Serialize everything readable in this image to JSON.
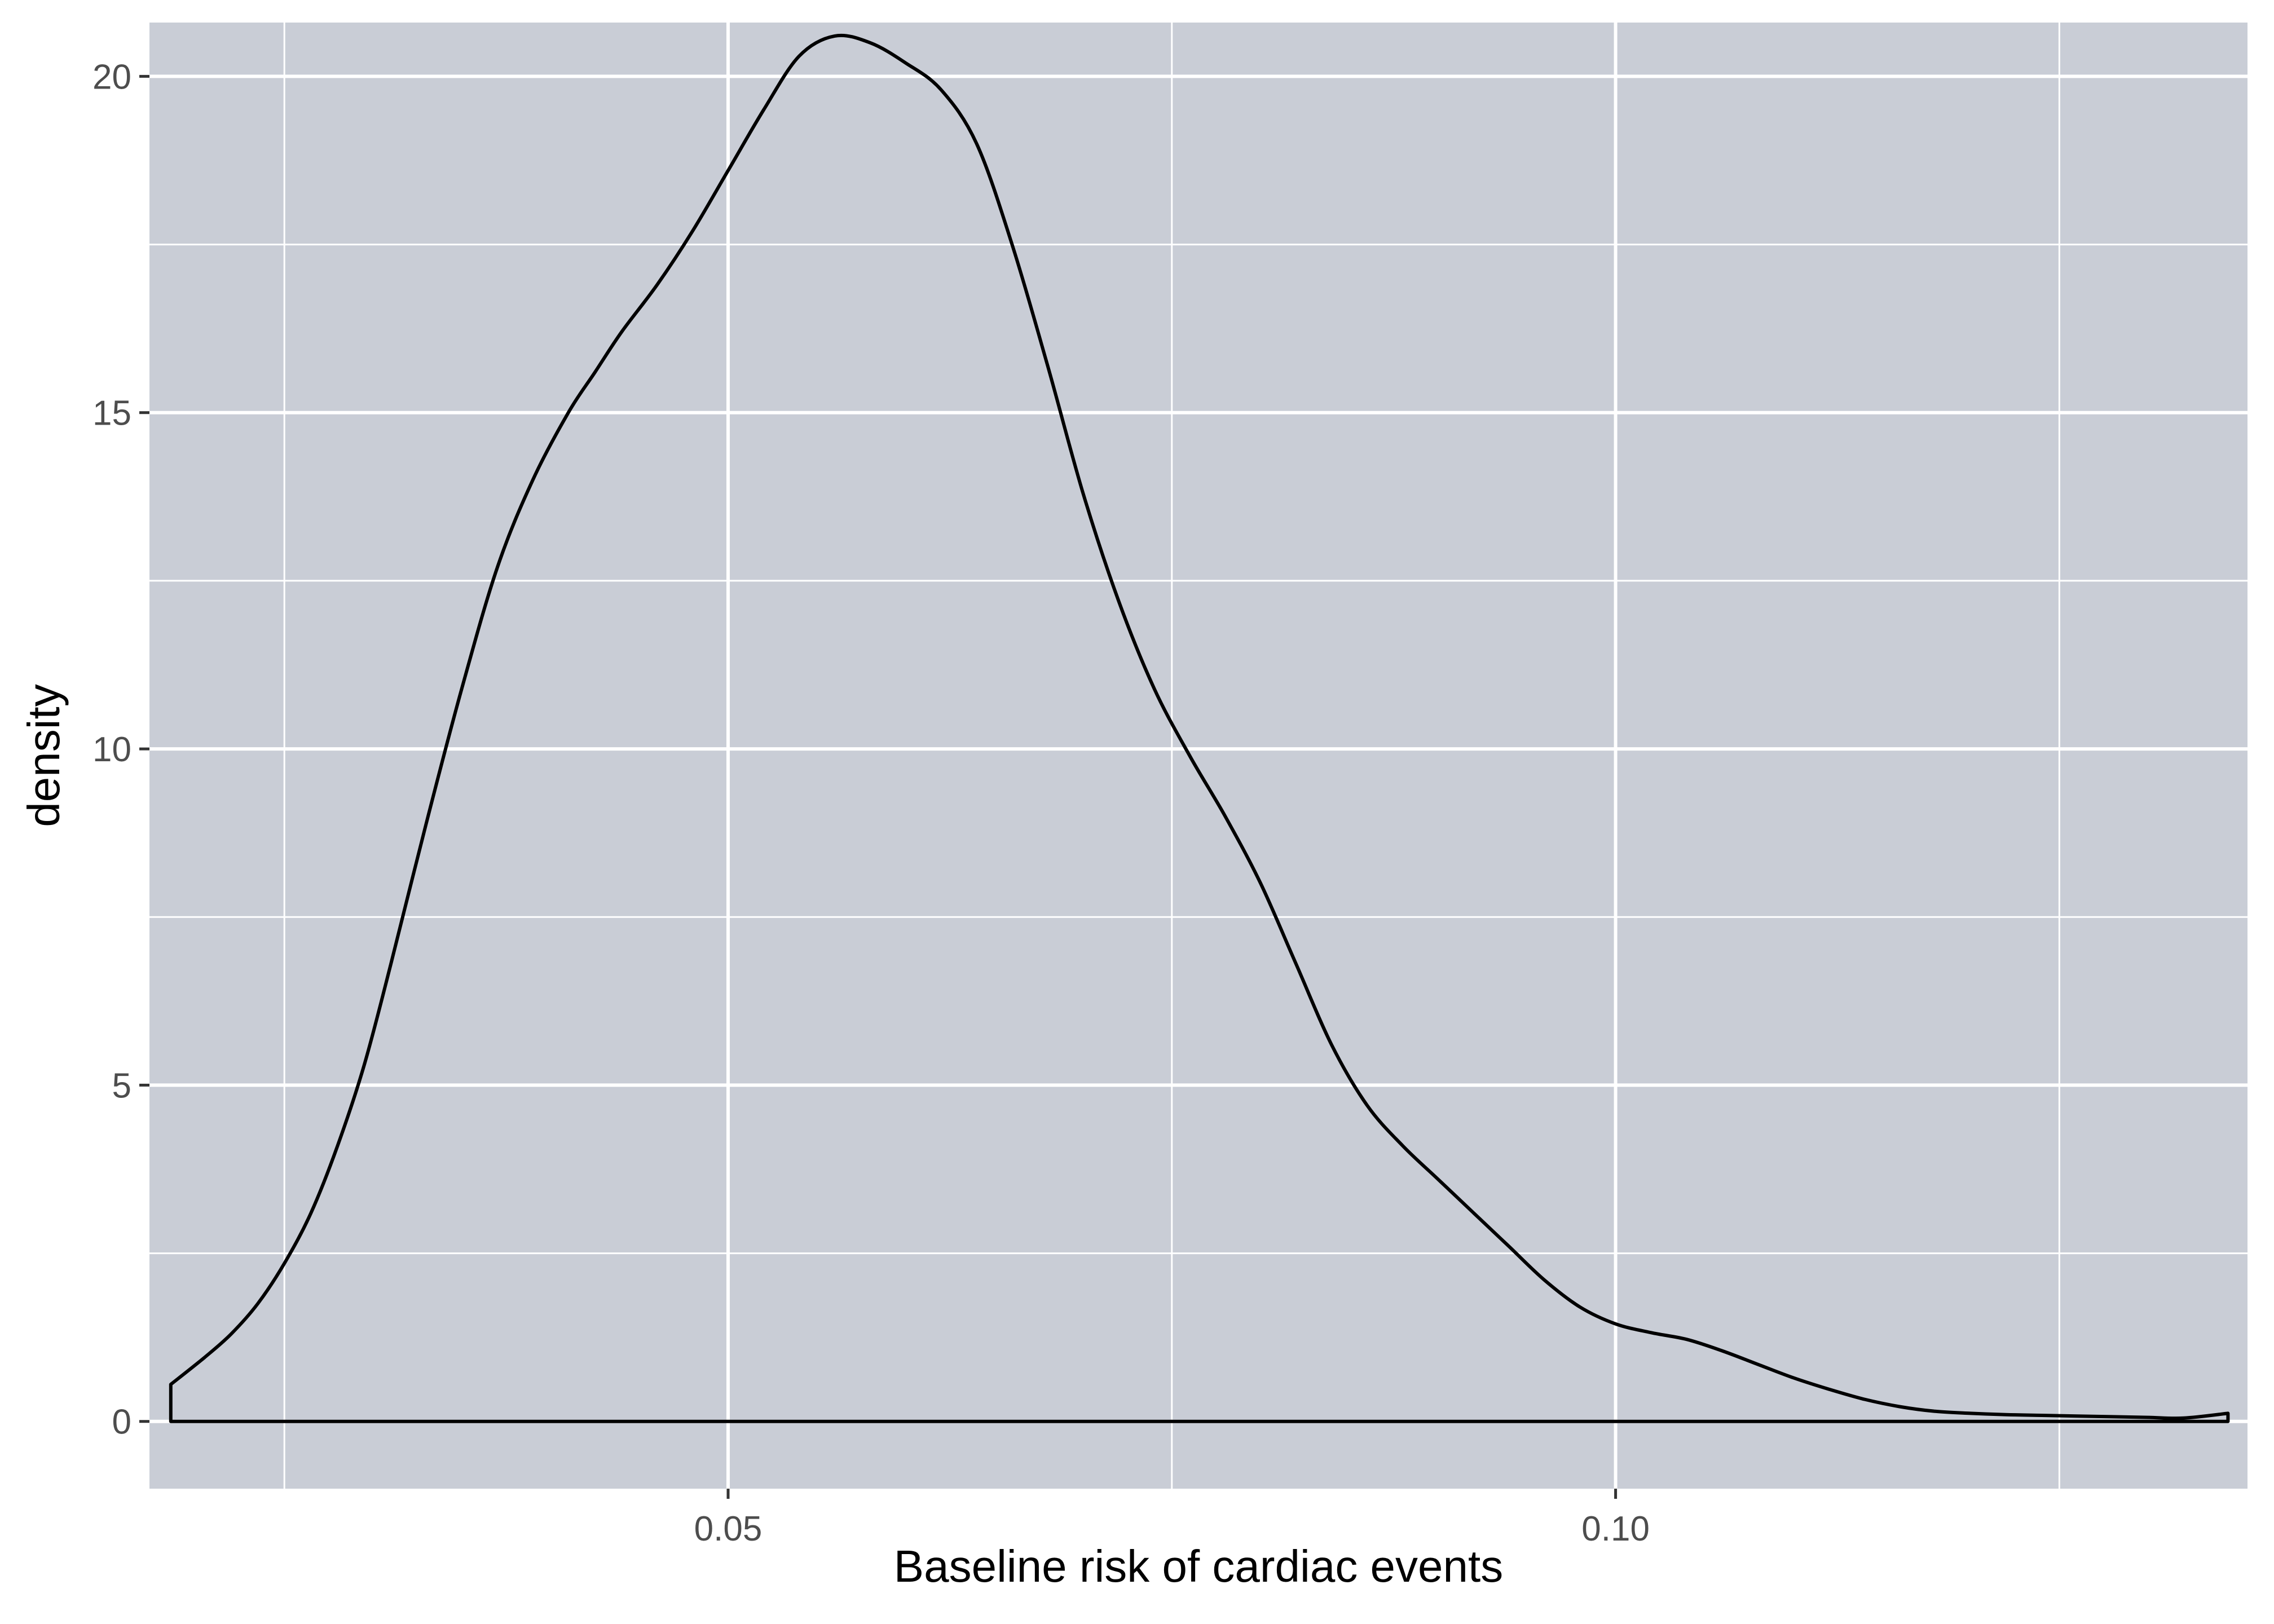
{
  "colors": {
    "panel_background": "#c9cdd6",
    "grid_major": "#ffffff",
    "grid_minor": "#ffffff",
    "curve": "#000000",
    "tick_text": "#4d4d4d",
    "title_text": "#000000"
  },
  "chart_data": {
    "type": "area",
    "geom": "density",
    "title": "",
    "xlabel": "Baseline risk of cardiac events",
    "ylabel": "density",
    "xlim": [
      0.0174,
      0.1356
    ],
    "ylim": [
      -1.0,
      20.8
    ],
    "x_ticks": [
      {
        "value": 0.05,
        "label": "0.05"
      },
      {
        "value": 0.1,
        "label": "0.10"
      }
    ],
    "x_minor_ticks": [
      0.025,
      0.075,
      0.125
    ],
    "y_ticks": [
      {
        "value": 0,
        "label": "0"
      },
      {
        "value": 5,
        "label": "5"
      },
      {
        "value": 10,
        "label": "10"
      },
      {
        "value": 15,
        "label": "15"
      },
      {
        "value": 20,
        "label": "20"
      }
    ],
    "y_minor_ticks": [
      2.5,
      7.5,
      12.5,
      17.5
    ],
    "grid": true,
    "legend": "none",
    "fill": "none",
    "series": [
      {
        "x": [
          0.0186,
          0.0205,
          0.022,
          0.0235,
          0.025,
          0.0265,
          0.028,
          0.0295,
          0.031,
          0.033,
          0.035,
          0.037,
          0.039,
          0.041,
          0.0425,
          0.044,
          0.046,
          0.048,
          0.05,
          0.052,
          0.054,
          0.056,
          0.058,
          0.06,
          0.062,
          0.064,
          0.066,
          0.068,
          0.07,
          0.072,
          0.074,
          0.076,
          0.078,
          0.08,
          0.082,
          0.084,
          0.086,
          0.088,
          0.09,
          0.092,
          0.094,
          0.096,
          0.098,
          0.1,
          0.102,
          0.104,
          0.106,
          0.108,
          0.11,
          0.112,
          0.114,
          0.116,
          0.118,
          0.12,
          0.122,
          0.124,
          0.126,
          0.128,
          0.13,
          0.132,
          0.1345
        ],
        "y": [
          0.55,
          0.95,
          1.3,
          1.75,
          2.35,
          3.1,
          4.1,
          5.3,
          6.8,
          8.9,
          10.9,
          12.7,
          14.0,
          15.0,
          15.6,
          16.2,
          16.9,
          17.7,
          18.6,
          19.5,
          20.3,
          20.6,
          20.5,
          20.2,
          19.8,
          19.0,
          17.5,
          15.7,
          13.8,
          12.2,
          10.9,
          9.9,
          9.0,
          8.0,
          6.8,
          5.6,
          4.7,
          4.1,
          3.6,
          3.1,
          2.6,
          2.1,
          1.7,
          1.45,
          1.32,
          1.22,
          1.05,
          0.85,
          0.65,
          0.48,
          0.33,
          0.22,
          0.15,
          0.12,
          0.1,
          0.09,
          0.08,
          0.07,
          0.06,
          0.05,
          0.12
        ]
      }
    ]
  }
}
